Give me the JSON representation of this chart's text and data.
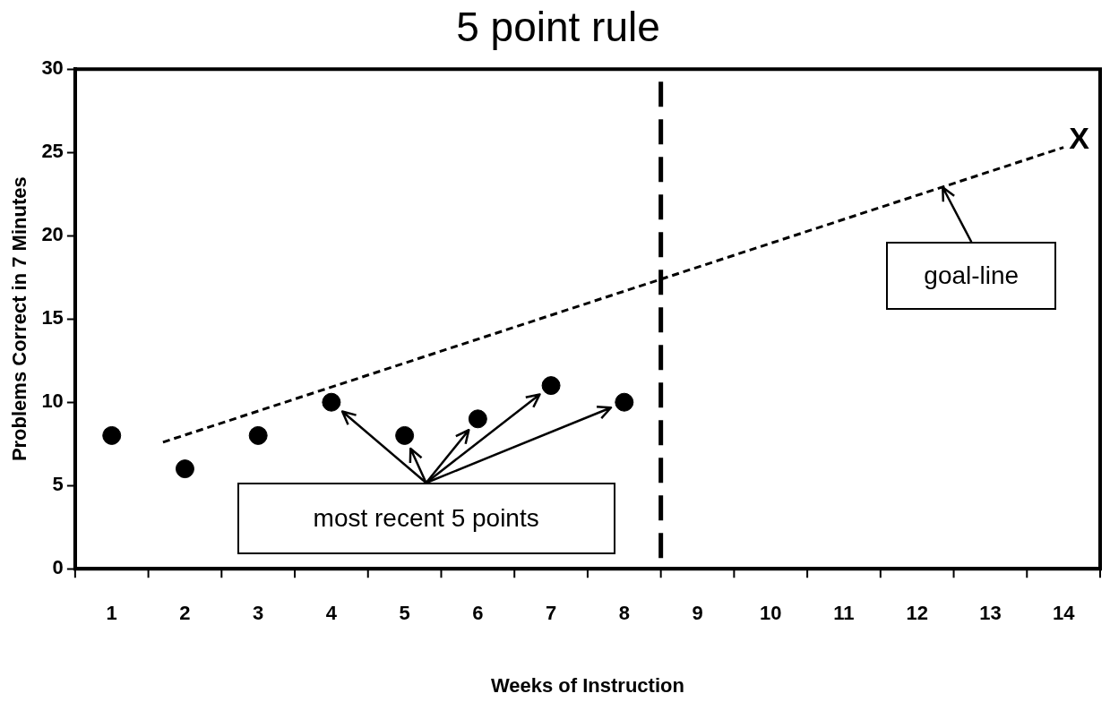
{
  "chart_data": {
    "type": "scatter",
    "title": "5 point rule",
    "xlabel": "Weeks of Instruction",
    "ylabel": "Problems Correct in 7 Minutes",
    "xlim": [
      0.5,
      14.5
    ],
    "xticks": [
      1,
      2,
      3,
      4,
      5,
      6,
      7,
      8,
      9,
      10,
      11,
      12,
      13,
      14
    ],
    "ylim": [
      0,
      30
    ],
    "yticks": [
      0,
      5,
      10,
      15,
      20,
      25,
      30
    ],
    "grid": false,
    "legend": false,
    "marker": "circle",
    "series": [
      {
        "type": "scatter",
        "color": "#000000",
        "x": [
          1,
          2,
          3,
          4,
          5,
          6,
          7,
          8
        ],
        "values": [
          8,
          6,
          8,
          10,
          8,
          9,
          11,
          10
        ]
      },
      {
        "type": "line",
        "color": "#000000",
        "line_style": "dashed",
        "marker": "none",
        "x": [
          1.7,
          14
        ],
        "values": [
          7.6,
          25.3
        ]
      }
    ],
    "ref_lines": [
      {
        "axis": "x",
        "value": 8.5,
        "color": "#000000",
        "line_style": "dashed"
      }
    ],
    "annotations": [
      {
        "text": "X",
        "x": 14,
        "y": 25.3
      },
      {
        "text": "goal-line",
        "x": 12.35,
        "y": 22.9
      },
      "most recent 5 points"
    ]
  }
}
